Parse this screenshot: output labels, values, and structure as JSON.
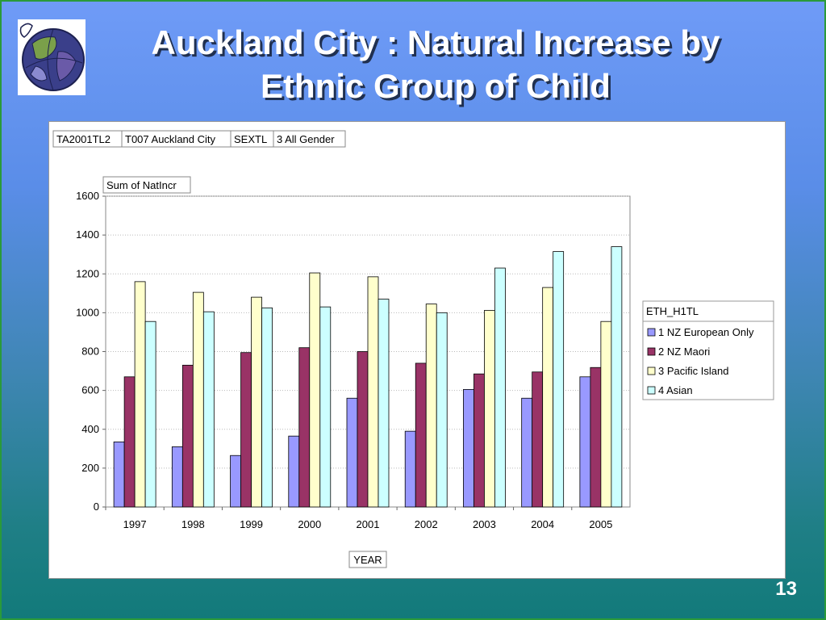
{
  "slide": {
    "title_line1": "Auckland City : Natural Increase by",
    "title_line2": "Ethnic Group of Child",
    "page_number": "13"
  },
  "pivot": {
    "filters": [
      {
        "field": "TA2001TL2",
        "value": "T007 Auckland City"
      },
      {
        "field": "SEXTL",
        "value": "3 All Gender"
      }
    ],
    "data_field": "Sum of NatIncr",
    "legend_field": "ETH_H1TL",
    "axis_field": "YEAR"
  },
  "chart_data": {
    "type": "bar",
    "title": "",
    "xlabel": "YEAR",
    "ylabel": "Sum of NatIncr",
    "ylim": [
      0,
      1600
    ],
    "yticks": [
      0,
      200,
      400,
      600,
      800,
      1000,
      1200,
      1400,
      1600
    ],
    "grid": true,
    "legend_position": "right",
    "categories": [
      "1997",
      "1998",
      "1999",
      "2000",
      "2001",
      "2002",
      "2003",
      "2004",
      "2005"
    ],
    "series": [
      {
        "name": "1 NZ European Only",
        "color": "#9999ff",
        "values": [
          335,
          310,
          265,
          365,
          560,
          390,
          605,
          560,
          670
        ]
      },
      {
        "name": "2 NZ Maori",
        "color": "#993366",
        "values": [
          670,
          730,
          795,
          820,
          800,
          740,
          685,
          695,
          718
        ]
      },
      {
        "name": "3 Pacific Island",
        "color": "#ffffcc",
        "values": [
          1160,
          1105,
          1080,
          1205,
          1185,
          1045,
          1012,
          1130,
          955
        ]
      },
      {
        "name": "4 Asian",
        "color": "#ccffff",
        "values": [
          955,
          1005,
          1025,
          1030,
          1070,
          1000,
          1230,
          1315,
          1340
        ]
      }
    ]
  }
}
